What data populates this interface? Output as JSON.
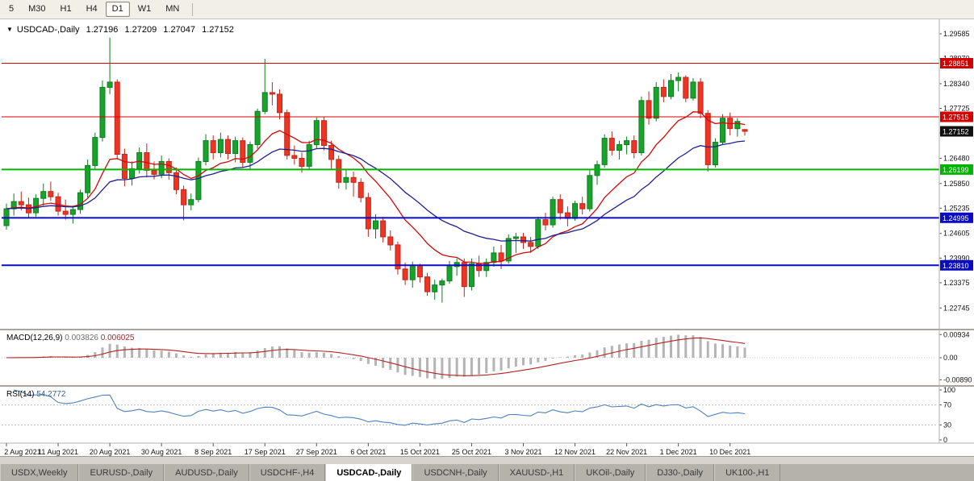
{
  "toolbar": {
    "timeframes": [
      {
        "label": "5",
        "active": false
      },
      {
        "label": "M30",
        "active": false
      },
      {
        "label": "H1",
        "active": false
      },
      {
        "label": "H4",
        "active": false
      },
      {
        "label": "D1",
        "active": true
      },
      {
        "label": "W1",
        "active": false
      },
      {
        "label": "MN",
        "active": false
      }
    ]
  },
  "colors": {
    "bull": "#18a32b",
    "bull_stroke": "#0e7d20",
    "bear": "#ee3424",
    "bear_stroke": "#bf281b",
    "ma_fast": "#cf0a0a",
    "ma_slow": "#1f1f8f",
    "level_red": "#d40000",
    "level_green": "#00b400",
    "level_blue": "#0b0bc4",
    "badge_current": "#111111",
    "macd_hist": "#b4b4b4",
    "macd_signal": "#b22222",
    "rsi_line": "#4f81bd",
    "grid": "#c8c8c8",
    "axis": "#b0b0b0",
    "separator": "#a8a59d"
  },
  "chart_data": {
    "type": "candlestick",
    "symbol": "USDCAD-",
    "timeframe": "Daily",
    "info": {
      "collapse_icon": "▼",
      "symbol_label": "USDCAD-,Daily",
      "open": "1.27196",
      "high": "1.27209",
      "low": "1.27047",
      "close": "1.27152"
    },
    "ma_fast": {
      "period": 12
    },
    "ma_slow": {
      "period": 26
    },
    "price_ticks": [
      "1.29585",
      "1.28970",
      "1.28340",
      "1.27725",
      "1.27110",
      "1.26480",
      "1.25850",
      "1.25235",
      "1.24605",
      "1.23990",
      "1.23375",
      "1.22745"
    ],
    "levels": [
      {
        "price": 1.28851,
        "label": "1.28851",
        "colorKey": "level_red",
        "width": 1
      },
      {
        "price": 1.27515,
        "label": "1.27515",
        "colorKey": "level_red",
        "width": 1
      },
      {
        "price": 1.26199,
        "label": "1.26199",
        "colorKey": "level_green",
        "width": 2
      },
      {
        "price": 1.24995,
        "label": "1.24995",
        "colorKey": "level_blue",
        "width": 2
      },
      {
        "price": 1.2381,
        "label": "1.23810",
        "colorKey": "level_blue",
        "width": 2
      }
    ],
    "current_price": {
      "price": 1.27152,
      "label": "1.27152"
    },
    "label_every": 7,
    "date_labels": [
      "2 Aug 2021",
      "11 Aug 2021",
      "20 Aug 2021",
      "30 Aug 2021",
      "8 Sep 2021",
      "17 Sep 2021",
      "27 Sep 2021",
      "6 Oct 2021",
      "15 Oct 2021",
      "25 Oct 2021",
      "3 Nov 2021",
      "12 Nov 2021",
      "22 Nov 2021",
      "1 Dec 2021",
      "10 Dec 2021"
    ],
    "ohlc": [
      [
        1.248,
        1.2535,
        1.247,
        1.2522
      ],
      [
        1.2522,
        1.256,
        1.2505,
        1.254
      ],
      [
        1.254,
        1.2565,
        1.2518,
        1.2532
      ],
      [
        1.2532,
        1.255,
        1.25,
        1.2512
      ],
      [
        1.2512,
        1.2558,
        1.2502,
        1.2548
      ],
      [
        1.2548,
        1.2585,
        1.253,
        1.2565
      ],
      [
        1.2565,
        1.259,
        1.2542,
        1.2552
      ],
      [
        1.2552,
        1.2562,
        1.2505,
        1.2516
      ],
      [
        1.2516,
        1.2545,
        1.2495,
        1.2508
      ],
      [
        1.2508,
        1.253,
        1.2485,
        1.252
      ],
      [
        1.252,
        1.257,
        1.251,
        1.2562
      ],
      [
        1.2562,
        1.2645,
        1.255,
        1.263
      ],
      [
        1.263,
        1.2712,
        1.2618,
        1.27
      ],
      [
        1.27,
        1.2842,
        1.269,
        1.2825
      ],
      [
        1.2825,
        1.2949,
        1.2808,
        1.2838
      ],
      [
        1.2838,
        1.2845,
        1.2645,
        1.2658
      ],
      [
        1.2658,
        1.2672,
        1.2578,
        1.2598
      ],
      [
        1.2598,
        1.264,
        1.258,
        1.2622
      ],
      [
        1.2622,
        1.2675,
        1.261,
        1.2662
      ],
      [
        1.2662,
        1.2685,
        1.26,
        1.2618
      ],
      [
        1.2618,
        1.264,
        1.2595,
        1.2608
      ],
      [
        1.2608,
        1.2655,
        1.2598,
        1.264
      ],
      [
        1.264,
        1.2648,
        1.2595,
        1.2612
      ],
      [
        1.2612,
        1.2625,
        1.2558,
        1.257
      ],
      [
        1.257,
        1.258,
        1.2493,
        1.2532
      ],
      [
        1.2532,
        1.256,
        1.2518,
        1.2545
      ],
      [
        1.2545,
        1.265,
        1.2538,
        1.264
      ],
      [
        1.264,
        1.2708,
        1.263,
        1.2692
      ],
      [
        1.2692,
        1.2705,
        1.2645,
        1.2662
      ],
      [
        1.2662,
        1.2712,
        1.265,
        1.2695
      ],
      [
        1.2695,
        1.2705,
        1.2645,
        1.266
      ],
      [
        1.266,
        1.2702,
        1.2638,
        1.2692
      ],
      [
        1.2692,
        1.27,
        1.2625,
        1.2638
      ],
      [
        1.2638,
        1.269,
        1.2618,
        1.2682
      ],
      [
        1.2682,
        1.2772,
        1.2672,
        1.2765
      ],
      [
        1.2765,
        1.2896,
        1.2758,
        1.2812
      ],
      [
        1.2812,
        1.2838,
        1.278,
        1.2808
      ],
      [
        1.2808,
        1.282,
        1.2745,
        1.2762
      ],
      [
        1.2762,
        1.277,
        1.2645,
        1.2655
      ],
      [
        1.2655,
        1.268,
        1.2632,
        1.2648
      ],
      [
        1.2648,
        1.2662,
        1.2612,
        1.2628
      ],
      [
        1.2628,
        1.2692,
        1.262,
        1.2682
      ],
      [
        1.2682,
        1.275,
        1.2672,
        1.2742
      ],
      [
        1.2742,
        1.2752,
        1.2668,
        1.268
      ],
      [
        1.268,
        1.2692,
        1.2622,
        1.2645
      ],
      [
        1.2645,
        1.2655,
        1.2572,
        1.2588
      ],
      [
        1.2588,
        1.2618,
        1.257,
        1.26
      ],
      [
        1.26,
        1.2615,
        1.2552,
        1.2588
      ],
      [
        1.2588,
        1.2598,
        1.2538,
        1.255
      ],
      [
        1.255,
        1.2562,
        1.2452,
        1.2472
      ],
      [
        1.2472,
        1.2508,
        1.2448,
        1.2492
      ],
      [
        1.2492,
        1.2502,
        1.2438,
        1.2452
      ],
      [
        1.2452,
        1.2468,
        1.2418,
        1.2432
      ],
      [
        1.2432,
        1.244,
        1.2358,
        1.2372
      ],
      [
        1.2372,
        1.2388,
        1.2332,
        1.2345
      ],
      [
        1.2345,
        1.239,
        1.2325,
        1.2378
      ],
      [
        1.2378,
        1.2385,
        1.2338,
        1.2352
      ],
      [
        1.2352,
        1.2362,
        1.2305,
        1.2315
      ],
      [
        1.2315,
        1.2345,
        1.2295,
        1.2332
      ],
      [
        1.2332,
        1.2348,
        1.2288,
        1.2342
      ],
      [
        1.2342,
        1.2392,
        1.2335,
        1.2378
      ],
      [
        1.2378,
        1.2398,
        1.2355,
        1.2388
      ],
      [
        1.2388,
        1.2398,
        1.2302,
        1.2328
      ],
      [
        1.2328,
        1.2398,
        1.2318,
        1.2385
      ],
      [
        1.2385,
        1.2405,
        1.2352,
        1.2368
      ],
      [
        1.2368,
        1.2398,
        1.2352,
        1.2388
      ],
      [
        1.2388,
        1.2428,
        1.2378,
        1.2412
      ],
      [
        1.2412,
        1.2432,
        1.2372,
        1.2392
      ],
      [
        1.2392,
        1.2458,
        1.2385,
        1.2448
      ],
      [
        1.2448,
        1.2462,
        1.2412,
        1.2452
      ],
      [
        1.2452,
        1.2462,
        1.2422,
        1.2438
      ],
      [
        1.2438,
        1.2452,
        1.2412,
        1.2428
      ],
      [
        1.2428,
        1.2502,
        1.2422,
        1.2495
      ],
      [
        1.2495,
        1.2512,
        1.2468,
        1.2482
      ],
      [
        1.2482,
        1.2552,
        1.2475,
        1.2545
      ],
      [
        1.2545,
        1.2558,
        1.2495,
        1.2512
      ],
      [
        1.2512,
        1.2528,
        1.2478,
        1.2498
      ],
      [
        1.2498,
        1.2542,
        1.2492,
        1.2535
      ],
      [
        1.2535,
        1.2552,
        1.2508,
        1.2522
      ],
      [
        1.2522,
        1.2618,
        1.2515,
        1.2605
      ],
      [
        1.2605,
        1.2642,
        1.2582,
        1.2632
      ],
      [
        1.2632,
        1.2708,
        1.2625,
        1.2698
      ],
      [
        1.2698,
        1.2715,
        1.2655,
        1.2668
      ],
      [
        1.2668,
        1.2692,
        1.2645,
        1.2682
      ],
      [
        1.2682,
        1.2702,
        1.2658,
        1.2692
      ],
      [
        1.2692,
        1.2705,
        1.2648,
        1.2662
      ],
      [
        1.2662,
        1.2802,
        1.2655,
        1.2792
      ],
      [
        1.2792,
        1.2815,
        1.2732,
        1.2748
      ],
      [
        1.2748,
        1.2838,
        1.274,
        1.2825
      ],
      [
        1.2825,
        1.2845,
        1.2788,
        1.2802
      ],
      [
        1.2802,
        1.2858,
        1.2795,
        1.2842
      ],
      [
        1.2842,
        1.2862,
        1.2815,
        1.285
      ],
      [
        1.285,
        1.2855,
        1.2788,
        1.2798
      ],
      [
        1.2798,
        1.2848,
        1.2792,
        1.2838
      ],
      [
        1.2838,
        1.2848,
        1.2748,
        1.276
      ],
      [
        1.276,
        1.2768,
        1.2615,
        1.2632
      ],
      [
        1.2632,
        1.2698,
        1.2625,
        1.2688
      ],
      [
        1.2688,
        1.2758,
        1.2682,
        1.2748
      ],
      [
        1.2748,
        1.2762,
        1.2705,
        1.2722
      ],
      [
        1.2722,
        1.2748,
        1.2702,
        1.274
      ],
      [
        1.27196,
        1.27209,
        1.27047,
        1.27152
      ]
    ],
    "macd": {
      "header": {
        "name": "MACD(12,26,9)",
        "main": "0.003826",
        "signal": "0.006025"
      },
      "fast": 12,
      "slow": 26,
      "signal_period": 9,
      "axis": [
        {
          "text": "0.00934",
          "value": 0.00934
        },
        {
          "text": "0.00",
          "value": 0
        },
        {
          "text": "-0.00890",
          "value": -0.0089
        }
      ],
      "range": 0.0104
    },
    "rsi": {
      "header": {
        "name": "RSI(14)",
        "value": "54.2772"
      },
      "period": 14,
      "axis": [
        {
          "text": "100",
          "value": 100
        },
        {
          "text": "70",
          "value": 70
        },
        {
          "text": "30",
          "value": 30
        },
        {
          "text": "0",
          "value": 0
        }
      ],
      "dotted_levels": [
        70,
        30
      ]
    }
  },
  "tabs": [
    {
      "label": "USDX,Weekly",
      "active": false
    },
    {
      "label": "EURUSD-,Daily",
      "active": false
    },
    {
      "label": "AUDUSD-,Daily",
      "active": false
    },
    {
      "label": "USDCHF-,H4",
      "active": false
    },
    {
      "label": "USDCAD-,Daily",
      "active": true
    },
    {
      "label": "USDCNH-,Daily",
      "active": false
    },
    {
      "label": "XAUUSD-,H1",
      "active": false
    },
    {
      "label": "UKOil-,Daily",
      "active": false
    },
    {
      "label": "DJ30-,Daily",
      "active": false
    },
    {
      "label": "UK100-,H1",
      "active": false
    }
  ]
}
